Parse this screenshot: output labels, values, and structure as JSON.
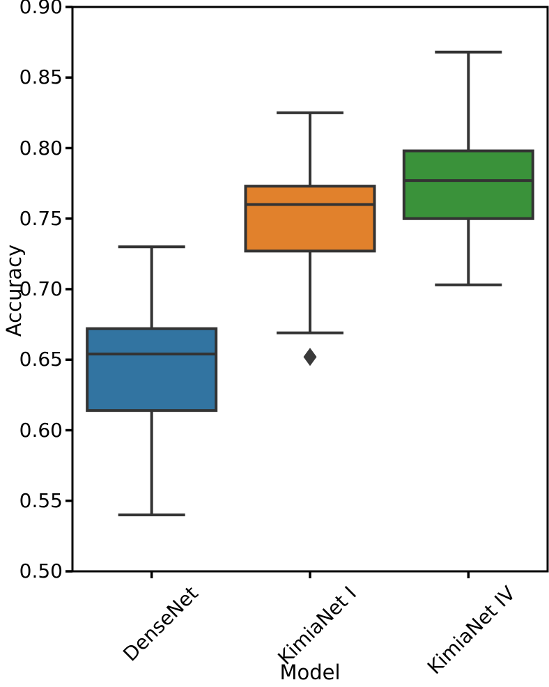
{
  "figure": {
    "background": "#ffffff",
    "spine_color": "#000000",
    "tick_color": "#000000",
    "box_line_color": "#333333",
    "outlier_color": "#3a3a3a"
  },
  "chart_data": {
    "type": "box",
    "title": "",
    "xlabel": "Model",
    "ylabel": "Accuracy",
    "ylim": [
      0.5,
      0.9
    ],
    "yticks": [
      0.5,
      0.55,
      0.6,
      0.65,
      0.7,
      0.75,
      0.8,
      0.85,
      0.9
    ],
    "ytick_format_decimals": 2,
    "grid": false,
    "legend_position": "none",
    "categories": [
      "DenseNet",
      "KimiaNet I",
      "KimiaNet IV"
    ],
    "series": [
      {
        "name": "DenseNet",
        "color": "#3274A1",
        "whisker_low": 0.54,
        "q1": 0.614,
        "median": 0.654,
        "q3": 0.672,
        "whisker_high": 0.73,
        "outliers": []
      },
      {
        "name": "KimiaNet I",
        "color": "#E1812C",
        "whisker_low": 0.669,
        "q1": 0.727,
        "median": 0.76,
        "q3": 0.773,
        "whisker_high": 0.825,
        "outliers": [
          0.652
        ]
      },
      {
        "name": "KimiaNet IV",
        "color": "#3A923A",
        "whisker_low": 0.703,
        "q1": 0.75,
        "median": 0.777,
        "q3": 0.798,
        "whisker_high": 0.868,
        "outliers": []
      }
    ]
  }
}
